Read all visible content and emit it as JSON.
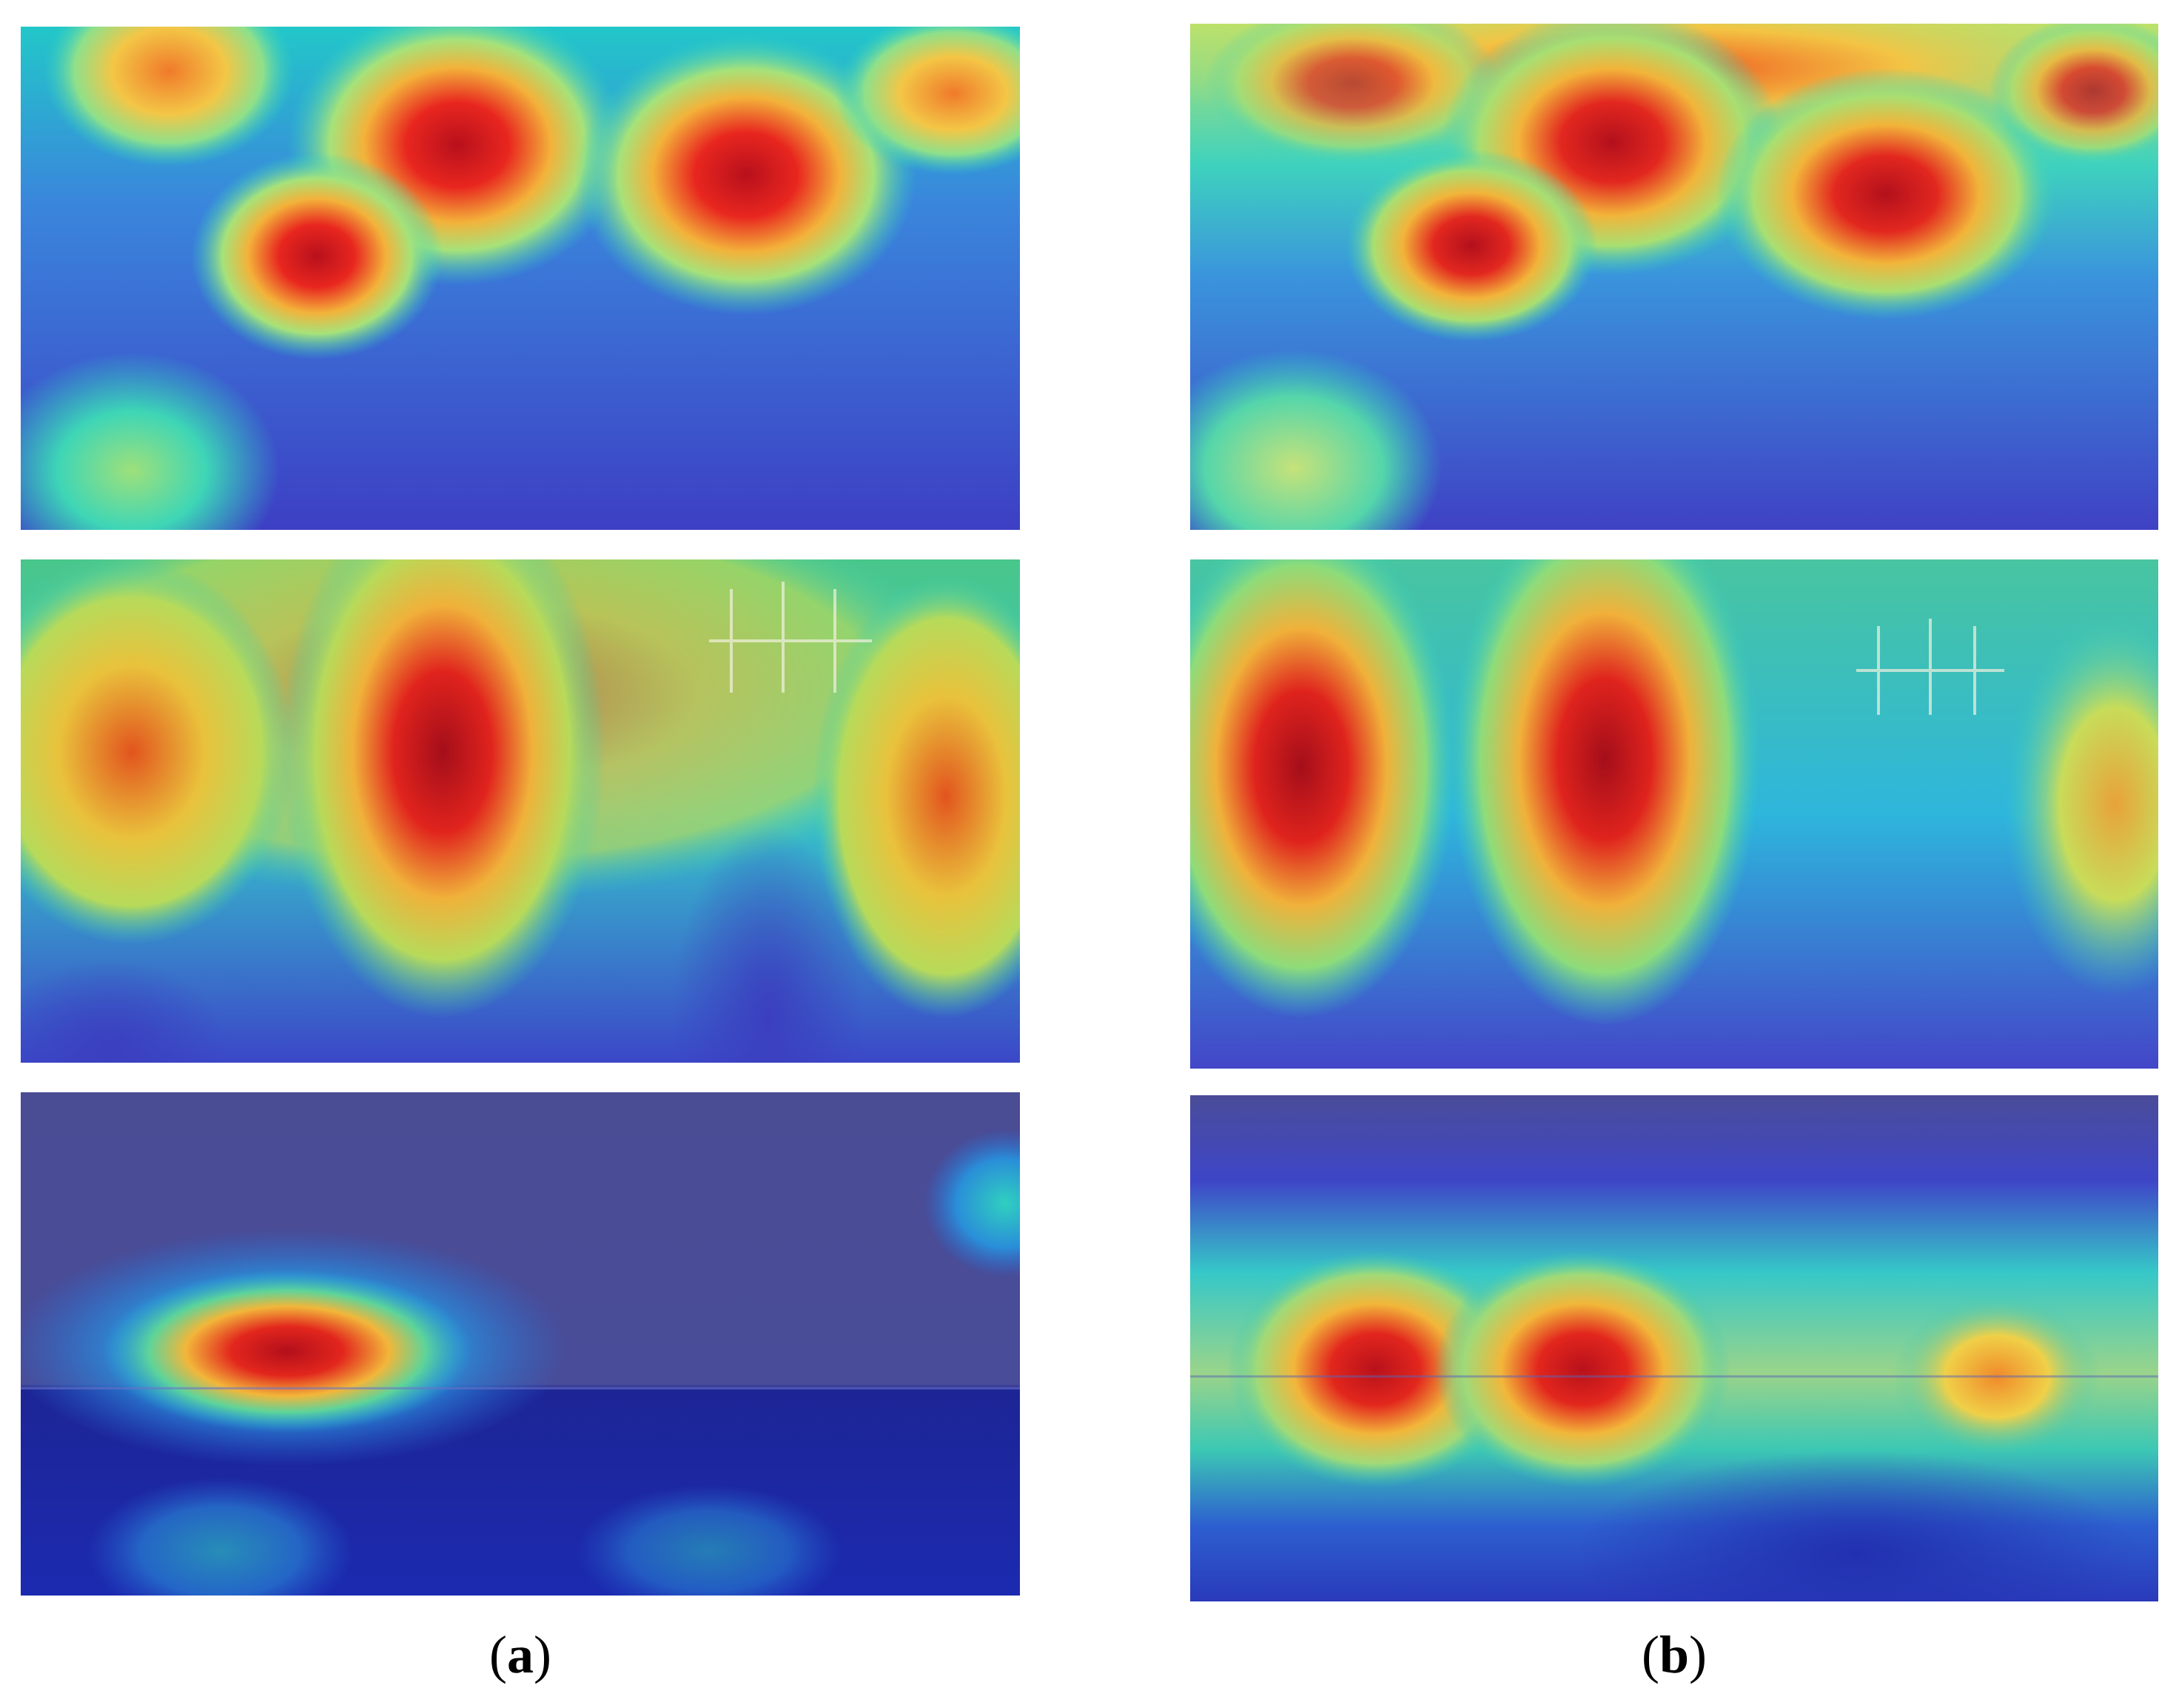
{
  "figure": {
    "columns": [
      {
        "caption_open": "(",
        "caption_letter": "a",
        "caption_close": ")"
      },
      {
        "caption_open": "(",
        "caption_letter": "b",
        "caption_close": ")"
      }
    ],
    "colormap": {
      "hot": "#d0141a",
      "warm": "#f06a1c",
      "mid": "#f4e04a",
      "cool": "#26d0b8",
      "cold": "#3e49cf",
      "deep": "#1c1f8c"
    }
  }
}
